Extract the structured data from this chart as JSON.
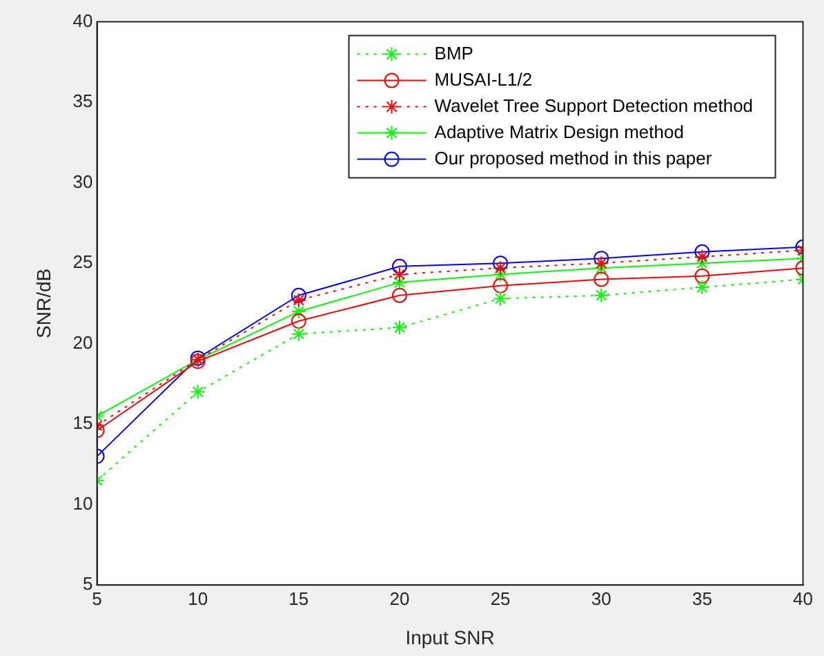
{
  "chart_data": {
    "type": "line",
    "xlabel": "Input SNR",
    "ylabel": "SNR/dB",
    "x": [
      5,
      10,
      15,
      20,
      25,
      30,
      35,
      40
    ],
    "xlim": [
      5,
      40
    ],
    "xticks": [
      5,
      10,
      15,
      20,
      25,
      30,
      35,
      40
    ],
    "ylim": [
      5,
      40
    ],
    "yticks": [
      5,
      10,
      15,
      20,
      25,
      30,
      35,
      40
    ],
    "grid": false,
    "legend": "top right",
    "series": [
      {
        "name": "BMP",
        "color": "#00ff00",
        "marker": "cross",
        "line_style": "dotted",
        "values": [
          11.5,
          17,
          20.6,
          21,
          22.8,
          23,
          23.5,
          24
        ]
      },
      {
        "name": "MUSAI-L1/2",
        "color": "#ff0000",
        "marker": "circle",
        "line_style": "solid",
        "values": [
          14.6,
          18.9,
          21.4,
          23,
          23.6,
          24,
          24.2,
          24.7
        ]
      },
      {
        "name": "Wavelet Tree Support Detection method",
        "color": "#ff0000",
        "marker": "cross",
        "line_style": "dotted",
        "values": [
          14.9,
          19,
          22.7,
          24.3,
          24.7,
          25,
          25.4,
          25.8
        ]
      },
      {
        "name": "Adaptive Matrix Design method",
        "color": "#00ff00",
        "marker": "cross",
        "line_style": "solid",
        "values": [
          15.5,
          19,
          22,
          23.8,
          24.3,
          24.7,
          25,
          25.3
        ]
      },
      {
        "name": "Our proposed method in this paper",
        "color": "#0000ff",
        "marker": "circle",
        "line_style": "solid",
        "values": [
          13,
          19.1,
          23,
          24.8,
          25,
          25.3,
          25.7,
          26
        ]
      }
    ]
  }
}
